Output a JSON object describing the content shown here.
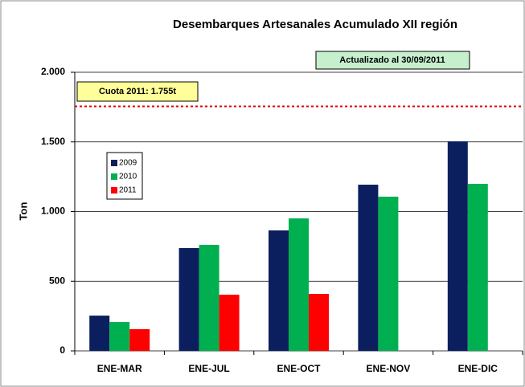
{
  "chart_data": {
    "type": "bar",
    "title": "Desembarques Artesanales Acumulado XII región",
    "annotation": "Actualizado al 30/09/2011",
    "y_label": "Ton",
    "categories": [
      "ENE-MAR",
      "ENE-JUL",
      "ENE-OCT",
      "ENE-NOV",
      "ENE-DIC"
    ],
    "series": [
      {
        "name": "2009",
        "color": "#0b1f5e",
        "values": [
          253,
          738,
          865,
          1193,
          1504
        ]
      },
      {
        "name": "2010",
        "color": "#00b050",
        "values": [
          207,
          761,
          951,
          1107,
          1199
        ]
      },
      {
        "name": "2011",
        "color": "#ff0000",
        "values": [
          156,
          403,
          409,
          null,
          null
        ]
      }
    ],
    "reference_line": {
      "value": 1755,
      "label": "Cuota 2011: 1.755t",
      "color": "#e00000"
    },
    "ylim": [
      0,
      2000
    ],
    "yticks": [
      0,
      500,
      {
        "value": 1000,
        "label": "1.000"
      },
      {
        "value": 1500,
        "label": "1.500"
      },
      {
        "value": 2000,
        "label": "2.000"
      }
    ],
    "grid": true
  }
}
